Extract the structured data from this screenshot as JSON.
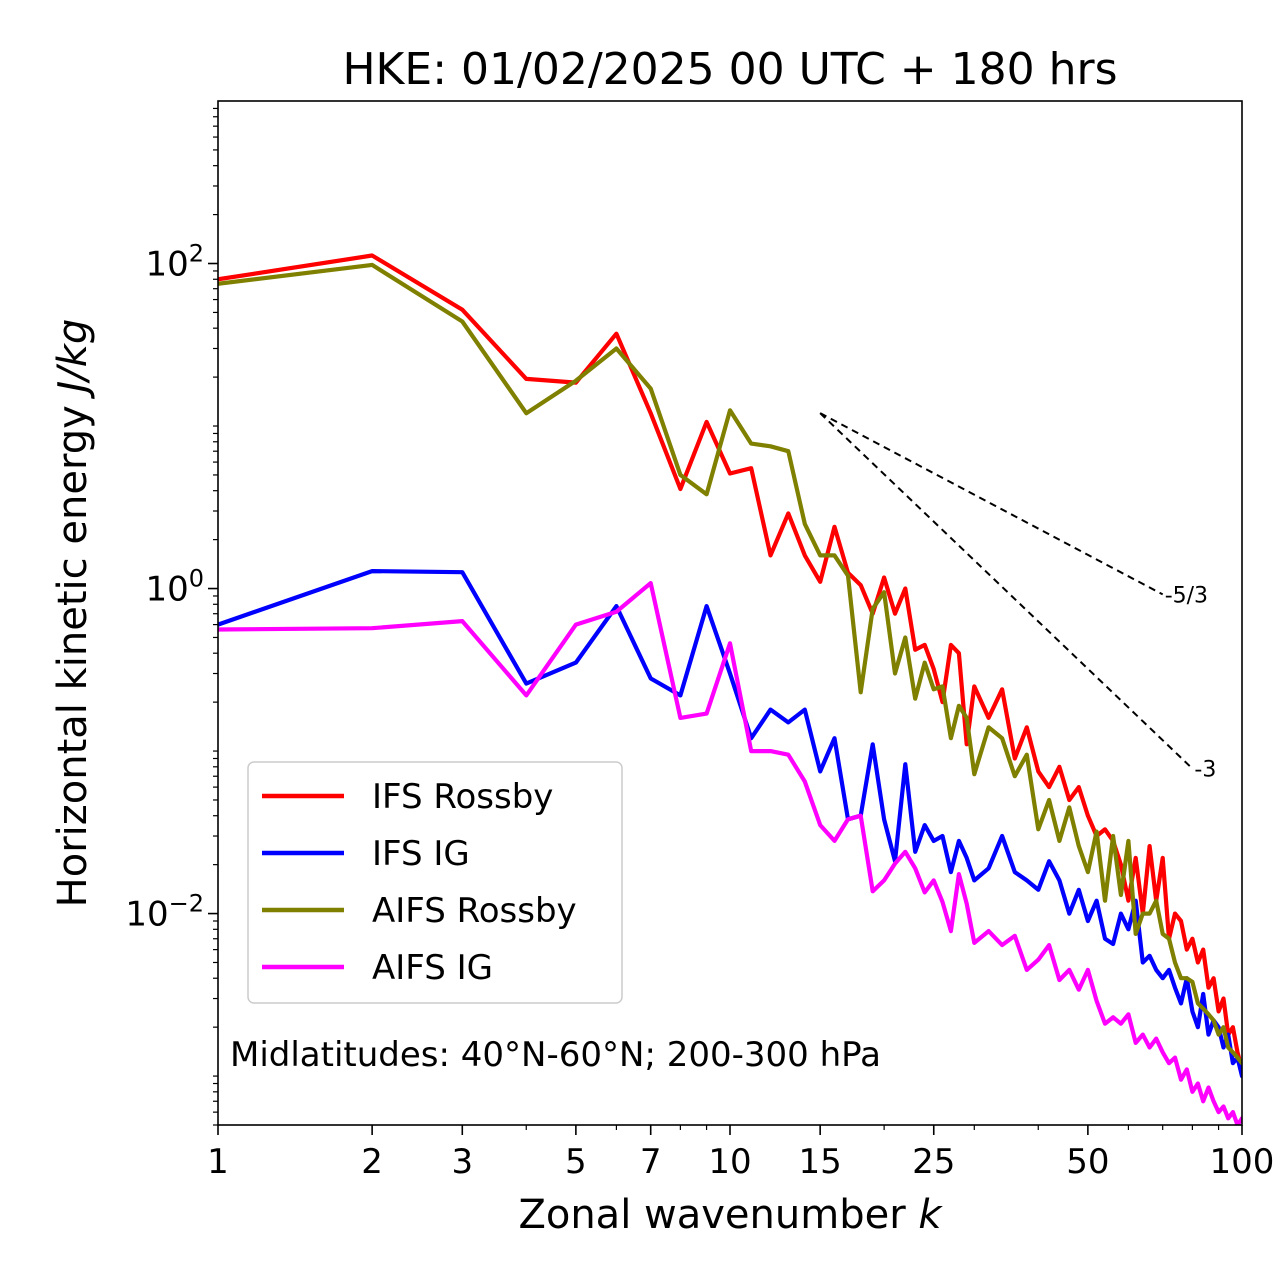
{
  "chart_data": {
    "type": "line",
    "title": "HKE: 01/02/2025 00 UTC + 180 hrs",
    "xlabel": "Zonal wavenumber",
    "xlabel_var": "k",
    "ylabel": "Horizontal kinetic energy",
    "ylabel_unit": "J/kg",
    "xscale": "log",
    "yscale": "log",
    "xlim": [
      1,
      100
    ],
    "ylim": [
      0.0005,
      1000
    ],
    "xticks": [
      {
        "value": 1,
        "label": "1"
      },
      {
        "value": 2,
        "label": "2"
      },
      {
        "value": 3,
        "label": "3"
      },
      {
        "value": 5,
        "label": "5"
      },
      {
        "value": 7,
        "label": "7"
      },
      {
        "value": 10,
        "label": "10"
      },
      {
        "value": 15,
        "label": "15"
      },
      {
        "value": 25,
        "label": "25"
      },
      {
        "value": 50,
        "label": "50"
      },
      {
        "value": 100,
        "label": "100"
      }
    ],
    "yticks": [
      {
        "value": 100,
        "base": "10",
        "exp": "2"
      },
      {
        "value": 1,
        "base": "10",
        "exp": "0"
      },
      {
        "value": 0.01,
        "base": "10",
        "exp": "−2"
      }
    ],
    "annotation": "Midlatitudes: 40°N-60°N; 200-300 hPa",
    "legend_position": "lower-left",
    "reference_lines": [
      {
        "label": "-5/3",
        "x0": 15,
        "y0": 12,
        "x1": 70,
        "y1": 0.92
      },
      {
        "label": "-3",
        "x0": 15,
        "y0": 12,
        "x1": 80,
        "y1": 0.078
      }
    ],
    "series": [
      {
        "name": "IFS Rossby",
        "color": "#ff0000",
        "x": [
          1,
          2,
          3,
          4,
          5,
          6,
          7,
          8,
          9,
          10,
          11,
          12,
          13,
          14,
          15,
          16,
          17,
          18,
          19,
          20,
          21,
          22,
          23,
          24,
          25,
          26,
          27,
          28,
          29,
          30,
          32,
          34,
          36,
          38,
          40,
          42,
          44,
          46,
          48,
          50,
          52,
          54,
          56,
          58,
          60,
          62,
          64,
          66,
          68,
          70,
          72,
          74,
          76,
          78,
          80,
          82,
          84,
          86,
          88,
          90,
          92,
          94,
          96,
          98,
          100
        ],
        "y": [
          80,
          112,
          52,
          19.5,
          18.5,
          37,
          12,
          4.1,
          10.6,
          5.1,
          5.5,
          1.6,
          2.9,
          1.6,
          1.1,
          2.4,
          1.25,
          1.05,
          0.7,
          1.17,
          0.7,
          1.0,
          0.42,
          0.45,
          0.32,
          0.2,
          0.45,
          0.4,
          0.11,
          0.25,
          0.16,
          0.24,
          0.09,
          0.14,
          0.075,
          0.06,
          0.08,
          0.05,
          0.06,
          0.04,
          0.03,
          0.033,
          0.028,
          0.02,
          0.012,
          0.022,
          0.01,
          0.026,
          0.012,
          0.022,
          0.007,
          0.01,
          0.009,
          0.006,
          0.007,
          0.005,
          0.006,
          0.0035,
          0.004,
          0.0025,
          0.003,
          0.0018,
          0.002,
          0.0014,
          0.0011
        ]
      },
      {
        "name": "IFS IG",
        "color": "#0000ff",
        "x": [
          1,
          2,
          3,
          4,
          5,
          6,
          7,
          8,
          9,
          10,
          11,
          12,
          13,
          14,
          15,
          16,
          17,
          18,
          19,
          20,
          21,
          22,
          23,
          24,
          25,
          26,
          27,
          28,
          29,
          30,
          32,
          34,
          36,
          38,
          40,
          42,
          44,
          46,
          48,
          50,
          52,
          54,
          56,
          58,
          60,
          62,
          64,
          66,
          68,
          70,
          72,
          74,
          76,
          78,
          80,
          82,
          84,
          86,
          88,
          90,
          92,
          94,
          96,
          98,
          100
        ],
        "y": [
          0.6,
          1.28,
          1.26,
          0.26,
          0.35,
          0.78,
          0.28,
          0.22,
          0.78,
          0.3,
          0.12,
          0.18,
          0.15,
          0.18,
          0.075,
          0.12,
          0.038,
          0.04,
          0.11,
          0.038,
          0.021,
          0.083,
          0.024,
          0.035,
          0.028,
          0.03,
          0.018,
          0.028,
          0.022,
          0.016,
          0.019,
          0.03,
          0.018,
          0.016,
          0.014,
          0.021,
          0.016,
          0.01,
          0.014,
          0.009,
          0.012,
          0.007,
          0.0065,
          0.01,
          0.008,
          0.012,
          0.005,
          0.0055,
          0.0045,
          0.004,
          0.0045,
          0.0035,
          0.0028,
          0.004,
          0.0025,
          0.002,
          0.0032,
          0.0018,
          0.0022,
          0.002,
          0.0015,
          0.0018,
          0.0012,
          0.0013,
          0.001
        ]
      },
      {
        "name": "AIFS Rossby",
        "color": "#808000",
        "x": [
          1,
          2,
          3,
          4,
          5,
          6,
          7,
          8,
          9,
          10,
          11,
          12,
          13,
          14,
          15,
          16,
          17,
          18,
          19,
          20,
          21,
          22,
          23,
          24,
          25,
          26,
          27,
          28,
          29,
          30,
          32,
          34,
          36,
          38,
          40,
          42,
          44,
          46,
          48,
          50,
          52,
          54,
          56,
          58,
          60,
          62,
          64,
          66,
          68,
          70,
          72,
          74,
          76,
          78,
          80,
          82,
          84,
          86,
          88,
          90,
          92,
          94,
          96,
          98,
          100
        ],
        "y": [
          75,
          98,
          44,
          12,
          19,
          30,
          17,
          5,
          3.8,
          12.5,
          7.8,
          7.5,
          7,
          2.5,
          1.6,
          1.6,
          1.2,
          0.23,
          0.75,
          0.95,
          0.3,
          0.5,
          0.21,
          0.35,
          0.24,
          0.25,
          0.12,
          0.19,
          0.16,
          0.072,
          0.14,
          0.12,
          0.07,
          0.095,
          0.033,
          0.05,
          0.028,
          0.045,
          0.026,
          0.018,
          0.032,
          0.012,
          0.03,
          0.013,
          0.028,
          0.0075,
          0.01,
          0.01,
          0.012,
          0.0075,
          0.007,
          0.005,
          0.004,
          0.004,
          0.0038,
          0.0028,
          0.0026,
          0.0024,
          0.0022,
          0.0018,
          0.002,
          0.0015,
          0.0014,
          0.0013,
          0.0012
        ]
      },
      {
        "name": "AIFS IG",
        "color": "#ff00ff",
        "x": [
          1,
          2,
          3,
          4,
          5,
          6,
          7,
          8,
          9,
          10,
          11,
          12,
          13,
          14,
          15,
          16,
          17,
          18,
          19,
          20,
          21,
          22,
          23,
          24,
          25,
          26,
          27,
          28,
          29,
          30,
          32,
          34,
          36,
          38,
          40,
          42,
          44,
          46,
          48,
          50,
          52,
          54,
          56,
          58,
          60,
          62,
          64,
          66,
          68,
          70,
          72,
          74,
          76,
          78,
          80,
          82,
          84,
          86,
          88,
          90,
          92,
          94,
          96,
          98,
          100
        ],
        "y": [
          0.56,
          0.57,
          0.63,
          0.22,
          0.6,
          0.72,
          1.08,
          0.16,
          0.17,
          0.46,
          0.1,
          0.1,
          0.095,
          0.065,
          0.035,
          0.028,
          0.038,
          0.04,
          0.0137,
          0.016,
          0.0203,
          0.024,
          0.019,
          0.0135,
          0.016,
          0.0118,
          0.0078,
          0.0175,
          0.0115,
          0.0066,
          0.0078,
          0.0064,
          0.0073,
          0.0045,
          0.0052,
          0.0064,
          0.0039,
          0.0045,
          0.0034,
          0.0045,
          0.0029,
          0.0021,
          0.0023,
          0.0021,
          0.0024,
          0.0016,
          0.0018,
          0.0015,
          0.0017,
          0.0014,
          0.0012,
          0.0013,
          0.00095,
          0.0011,
          0.0008,
          0.0009,
          0.0007,
          0.00085,
          0.0007,
          0.0006,
          0.00065,
          0.00055,
          0.0006,
          0.0005,
          0.00055
        ]
      }
    ]
  }
}
